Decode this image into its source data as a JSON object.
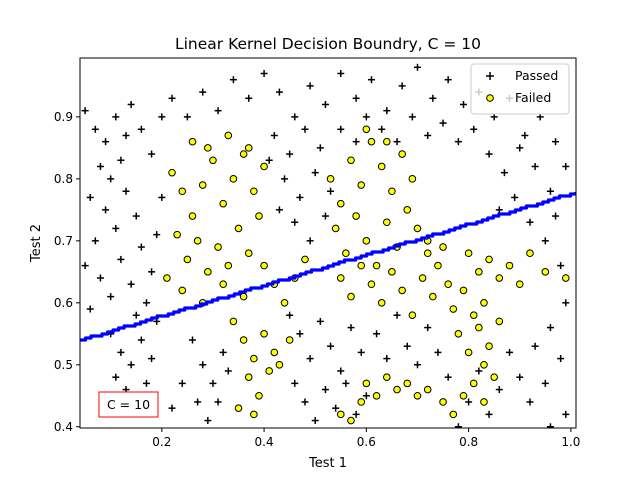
{
  "chart_data": {
    "type": "scatter",
    "title": "Linear Kernel Decision Boundry, C = 10",
    "xlabel": "Test 1",
    "ylabel": "Test 2",
    "xlim": [
      0.04,
      1.01
    ],
    "ylim": [
      0.398,
      0.995
    ],
    "xticks": [
      "0.2",
      "0.4",
      "0.6",
      "0.8",
      "1.0"
    ],
    "yticks": [
      "0.4",
      "0.5",
      "0.6",
      "0.7",
      "0.8",
      "0.9"
    ],
    "legend_position": "top-right",
    "annotation": "C = 10",
    "colors": {
      "passed": "#000000",
      "failed_fill": "#ffff00",
      "failed_edge": "#000000",
      "boundary": "#0000ff",
      "annotation_border": "#ff0000"
    },
    "series": [
      {
        "name": "Passed",
        "marker": "plus",
        "points": [
          [
            0.05,
            0.91
          ],
          [
            0.07,
            0.88
          ],
          [
            0.09,
            0.86
          ],
          [
            0.11,
            0.9
          ],
          [
            0.13,
            0.87
          ],
          [
            0.08,
            0.82
          ],
          [
            0.1,
            0.8
          ],
          [
            0.12,
            0.83
          ],
          [
            0.06,
            0.77
          ],
          [
            0.09,
            0.75
          ],
          [
            0.11,
            0.72
          ],
          [
            0.13,
            0.78
          ],
          [
            0.15,
            0.74
          ],
          [
            0.07,
            0.7
          ],
          [
            0.05,
            0.66
          ],
          [
            0.08,
            0.64
          ],
          [
            0.1,
            0.61
          ],
          [
            0.12,
            0.67
          ],
          [
            0.14,
            0.63
          ],
          [
            0.16,
            0.69
          ],
          [
            0.06,
            0.59
          ],
          [
            0.18,
            0.65
          ],
          [
            0.17,
            0.6
          ],
          [
            0.15,
            0.58
          ],
          [
            0.19,
            0.71
          ],
          [
            0.2,
            0.77
          ],
          [
            0.18,
            0.84
          ],
          [
            0.16,
            0.88
          ],
          [
            0.14,
            0.92
          ],
          [
            0.2,
            0.9
          ],
          [
            0.1,
            0.55
          ],
          [
            0.12,
            0.52
          ],
          [
            0.14,
            0.5
          ],
          [
            0.16,
            0.54
          ],
          [
            0.13,
            0.46
          ],
          [
            0.15,
            0.43
          ],
          [
            0.17,
            0.47
          ],
          [
            0.18,
            0.51
          ],
          [
            0.11,
            0.48
          ],
          [
            0.19,
            0.57
          ],
          [
            0.22,
            0.93
          ],
          [
            0.25,
            0.9
          ],
          [
            0.28,
            0.94
          ],
          [
            0.31,
            0.91
          ],
          [
            0.34,
            0.96
          ],
          [
            0.37,
            0.93
          ],
          [
            0.4,
            0.97
          ],
          [
            0.43,
            0.94
          ],
          [
            0.46,
            0.9
          ],
          [
            0.49,
            0.95
          ],
          [
            0.52,
            0.92
          ],
          [
            0.55,
            0.97
          ],
          [
            0.58,
            0.93
          ],
          [
            0.61,
            0.96
          ],
          [
            0.64,
            0.91
          ],
          [
            0.67,
            0.95
          ],
          [
            0.7,
            0.98
          ],
          [
            0.73,
            0.93
          ],
          [
            0.76,
            0.96
          ],
          [
            0.79,
            0.92
          ],
          [
            0.82,
            0.94
          ],
          [
            0.85,
            0.9
          ],
          [
            0.88,
            0.93
          ],
          [
            0.91,
            0.87
          ],
          [
            0.94,
            0.9
          ],
          [
            0.97,
            0.86
          ],
          [
            0.99,
            0.82
          ],
          [
            0.96,
            0.78
          ],
          [
            0.93,
            0.82
          ],
          [
            0.9,
            0.85
          ],
          [
            0.87,
            0.81
          ],
          [
            0.84,
            0.84
          ],
          [
            0.81,
            0.88
          ],
          [
            0.78,
            0.86
          ],
          [
            0.75,
            0.89
          ],
          [
            0.97,
            0.74
          ],
          [
            0.95,
            0.7
          ],
          [
            0.98,
            0.66
          ],
          [
            0.92,
            0.73
          ],
          [
            0.89,
            0.77
          ],
          [
            0.86,
            0.75
          ],
          [
            0.42,
            0.87
          ],
          [
            0.45,
            0.84
          ],
          [
            0.48,
            0.88
          ],
          [
            0.51,
            0.85
          ],
          [
            0.44,
            0.8
          ],
          [
            0.47,
            0.77
          ],
          [
            0.5,
            0.81
          ],
          [
            0.53,
            0.78
          ],
          [
            0.41,
            0.83
          ],
          [
            0.46,
            0.73
          ],
          [
            0.49,
            0.7
          ],
          [
            0.52,
            0.74
          ],
          [
            0.43,
            0.75
          ],
          [
            0.55,
            0.88
          ],
          [
            0.58,
            0.86
          ],
          [
            0.6,
            0.9
          ],
          [
            0.63,
            0.88
          ],
          [
            0.66,
            0.86
          ],
          [
            0.69,
            0.9
          ],
          [
            0.72,
            0.87
          ],
          [
            0.99,
            0.6
          ],
          [
            0.96,
            0.56
          ],
          [
            0.93,
            0.53
          ],
          [
            0.98,
            0.51
          ],
          [
            0.95,
            0.47
          ],
          [
            0.92,
            0.44
          ],
          [
            0.99,
            0.42
          ],
          [
            0.96,
            0.4
          ],
          [
            0.9,
            0.48
          ],
          [
            0.88,
            0.52
          ],
          [
            0.86,
            0.46
          ],
          [
            0.84,
            0.42
          ],
          [
            0.82,
            0.49
          ],
          [
            0.8,
            0.44
          ],
          [
            0.78,
            0.4
          ],
          [
            0.45,
            0.58
          ],
          [
            0.47,
            0.55
          ],
          [
            0.49,
            0.51
          ],
          [
            0.51,
            0.57
          ],
          [
            0.53,
            0.53
          ],
          [
            0.55,
            0.49
          ],
          [
            0.57,
            0.56
          ],
          [
            0.59,
            0.52
          ],
          [
            0.46,
            0.47
          ],
          [
            0.48,
            0.44
          ],
          [
            0.5,
            0.41
          ],
          [
            0.52,
            0.46
          ],
          [
            0.54,
            0.43
          ],
          [
            0.56,
            0.47
          ],
          [
            0.58,
            0.42
          ],
          [
            0.6,
            0.45
          ],
          [
            0.62,
            0.55
          ],
          [
            0.64,
            0.51
          ],
          [
            0.66,
            0.58
          ],
          [
            0.68,
            0.53
          ],
          [
            0.7,
            0.5
          ],
          [
            0.72,
            0.56
          ],
          [
            0.74,
            0.52
          ],
          [
            0.76,
            0.48
          ],
          [
            0.26,
            0.54
          ],
          [
            0.28,
            0.5
          ],
          [
            0.3,
            0.47
          ],
          [
            0.32,
            0.52
          ],
          [
            0.27,
            0.44
          ],
          [
            0.29,
            0.41
          ],
          [
            0.31,
            0.44
          ],
          [
            0.33,
            0.49
          ],
          [
            0.24,
            0.47
          ],
          [
            0.22,
            0.43
          ]
        ]
      },
      {
        "name": "Failed",
        "marker": "circle",
        "points": [
          [
            0.22,
            0.81
          ],
          [
            0.24,
            0.78
          ],
          [
            0.26,
            0.74
          ],
          [
            0.28,
            0.79
          ],
          [
            0.3,
            0.83
          ],
          [
            0.32,
            0.76
          ],
          [
            0.34,
            0.8
          ],
          [
            0.36,
            0.84
          ],
          [
            0.38,
            0.78
          ],
          [
            0.4,
            0.82
          ],
          [
            0.23,
            0.71
          ],
          [
            0.25,
            0.67
          ],
          [
            0.27,
            0.7
          ],
          [
            0.29,
            0.65
          ],
          [
            0.31,
            0.69
          ],
          [
            0.33,
            0.66
          ],
          [
            0.35,
            0.72
          ],
          [
            0.37,
            0.68
          ],
          [
            0.39,
            0.74
          ],
          [
            0.21,
            0.64
          ],
          [
            0.26,
            0.86
          ],
          [
            0.29,
            0.85
          ],
          [
            0.33,
            0.87
          ],
          [
            0.37,
            0.85
          ],
          [
            0.24,
            0.62
          ],
          [
            0.28,
            0.6
          ],
          [
            0.32,
            0.63
          ],
          [
            0.36,
            0.61
          ],
          [
            0.4,
            0.66
          ],
          [
            0.42,
            0.63
          ],
          [
            0.34,
            0.57
          ],
          [
            0.36,
            0.54
          ],
          [
            0.38,
            0.51
          ],
          [
            0.4,
            0.55
          ],
          [
            0.42,
            0.52
          ],
          [
            0.37,
            0.48
          ],
          [
            0.39,
            0.45
          ],
          [
            0.41,
            0.49
          ],
          [
            0.35,
            0.43
          ],
          [
            0.38,
            0.42
          ],
          [
            0.44,
            0.6
          ],
          [
            0.46,
            0.64
          ],
          [
            0.48,
            0.67
          ],
          [
            0.43,
            0.5
          ],
          [
            0.45,
            0.54
          ],
          [
            0.53,
            0.8
          ],
          [
            0.55,
            0.76
          ],
          [
            0.57,
            0.83
          ],
          [
            0.59,
            0.79
          ],
          [
            0.61,
            0.86
          ],
          [
            0.63,
            0.82
          ],
          [
            0.65,
            0.78
          ],
          [
            0.67,
            0.84
          ],
          [
            0.69,
            0.8
          ],
          [
            0.54,
            0.72
          ],
          [
            0.56,
            0.68
          ],
          [
            0.58,
            0.74
          ],
          [
            0.6,
            0.7
          ],
          [
            0.62,
            0.66
          ],
          [
            0.64,
            0.73
          ],
          [
            0.66,
            0.69
          ],
          [
            0.68,
            0.75
          ],
          [
            0.7,
            0.72
          ],
          [
            0.72,
            0.68
          ],
          [
            0.55,
            0.64
          ],
          [
            0.57,
            0.61
          ],
          [
            0.59,
            0.66
          ],
          [
            0.61,
            0.63
          ],
          [
            0.63,
            0.6
          ],
          [
            0.65,
            0.65
          ],
          [
            0.67,
            0.62
          ],
          [
            0.69,
            0.58
          ],
          [
            0.71,
            0.64
          ],
          [
            0.73,
            0.61
          ],
          [
            0.6,
            0.88
          ],
          [
            0.64,
            0.86
          ],
          [
            0.72,
            0.7
          ],
          [
            0.74,
            0.66
          ],
          [
            0.76,
            0.63
          ],
          [
            0.75,
            0.69
          ],
          [
            0.77,
            0.59
          ],
          [
            0.79,
            0.62
          ],
          [
            0.81,
            0.58
          ],
          [
            0.78,
            0.55
          ],
          [
            0.8,
            0.52
          ],
          [
            0.82,
            0.56
          ],
          [
            0.84,
            0.53
          ],
          [
            0.86,
            0.57
          ],
          [
            0.83,
            0.5
          ],
          [
            0.85,
            0.48
          ],
          [
            0.8,
            0.68
          ],
          [
            0.82,
            0.65
          ],
          [
            0.84,
            0.67
          ],
          [
            0.86,
            0.64
          ],
          [
            0.88,
            0.66
          ],
          [
            0.9,
            0.63
          ],
          [
            0.92,
            0.68
          ],
          [
            0.95,
            0.65
          ],
          [
            0.99,
            0.64
          ],
          [
            0.83,
            0.6
          ],
          [
            0.75,
            0.44
          ],
          [
            0.77,
            0.42
          ],
          [
            0.79,
            0.45
          ],
          [
            0.81,
            0.47
          ],
          [
            0.83,
            0.44
          ],
          [
            0.6,
            0.47
          ],
          [
            0.62,
            0.45
          ],
          [
            0.64,
            0.48
          ],
          [
            0.66,
            0.46
          ],
          [
            0.68,
            0.47
          ],
          [
            0.55,
            0.42
          ],
          [
            0.57,
            0.41
          ],
          [
            0.59,
            0.44
          ],
          [
            0.7,
            0.45
          ],
          [
            0.72,
            0.46
          ]
        ]
      }
    ],
    "boundary": {
      "label": "",
      "x": [
        0.04,
        1.01
      ],
      "y": [
        0.54,
        0.779
      ]
    }
  }
}
